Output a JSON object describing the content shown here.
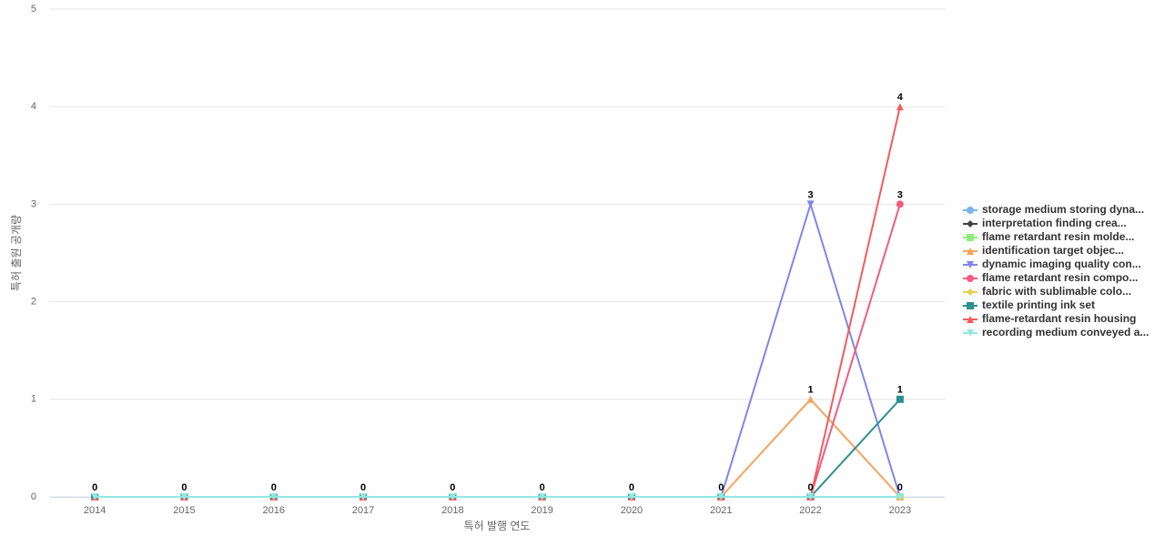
{
  "chart_data": {
    "type": "line",
    "x_label": "특허 발행 연도",
    "y_label": "특허 출원 공개량",
    "categories": [
      "2014",
      "2015",
      "2016",
      "2017",
      "2018",
      "2019",
      "2020",
      "2021",
      "2022",
      "2023"
    ],
    "ylim": [
      0,
      5
    ],
    "yticks": [
      0,
      1,
      2,
      3,
      4,
      5
    ],
    "grid": true,
    "legend": "right",
    "series": [
      {
        "name": "storage medium storing dyna...",
        "color": "#7cb5ec",
        "values": [
          0,
          0,
          0,
          0,
          0,
          0,
          0,
          0,
          0,
          0
        ]
      },
      {
        "name": "interpretation finding crea...",
        "color": "#434348",
        "values": [
          0,
          0,
          0,
          0,
          0,
          0,
          0,
          0,
          0,
          0
        ]
      },
      {
        "name": "flame retardant resin molde...",
        "color": "#90ed7d",
        "values": [
          0,
          0,
          0,
          0,
          0,
          0,
          0,
          0,
          0,
          0
        ]
      },
      {
        "name": "identification target objec...",
        "color": "#f7a35c",
        "values": [
          0,
          0,
          0,
          0,
          0,
          0,
          0,
          0,
          1,
          0
        ]
      },
      {
        "name": "dynamic imaging quality con...",
        "color": "#8085e9",
        "values": [
          0,
          0,
          0,
          0,
          0,
          0,
          0,
          0,
          3,
          0
        ]
      },
      {
        "name": "flame retardant resin compo...",
        "color": "#f15c80",
        "values": [
          0,
          0,
          0,
          0,
          0,
          0,
          0,
          0,
          0,
          3
        ]
      },
      {
        "name": "fabric with sublimable colo...",
        "color": "#e4d354",
        "values": [
          0,
          0,
          0,
          0,
          0,
          0,
          0,
          0,
          0,
          0
        ]
      },
      {
        "name": "textile printing ink set",
        "color": "#2b908f",
        "values": [
          0,
          0,
          0,
          0,
          0,
          0,
          0,
          0,
          0,
          1
        ]
      },
      {
        "name": "flame-retardant resin housing",
        "color": "#f45b5b",
        "values": [
          0,
          0,
          0,
          0,
          0,
          0,
          0,
          0,
          0,
          4
        ]
      },
      {
        "name": "recording medium conveyed a...",
        "color": "#91e8e1",
        "values": [
          0,
          0,
          0,
          0,
          0,
          0,
          0,
          0,
          0,
          0
        ]
      }
    ]
  }
}
